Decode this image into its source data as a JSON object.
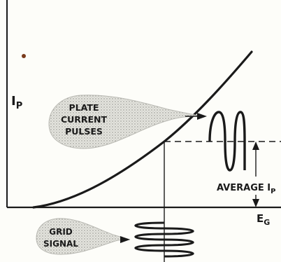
{
  "labels": {
    "y_axis": "I",
    "y_axis_sub": "P",
    "x_axis": "E",
    "x_axis_sub": "G",
    "plate_line1": "PLATE",
    "plate_line2": "CURRENT",
    "plate_line3": "PULSES",
    "grid_line1": "GRID",
    "grid_line2": "SIGNAL",
    "average": "AVERAGE I",
    "average_sub": "P"
  },
  "colors": {
    "ink": "#1a1a1a",
    "balloon_fill": "#d8d8d2",
    "dot": "#7a3b1c",
    "background": "#fdfdf9"
  },
  "icons": {
    "arrowhead": "triangle-arrowhead"
  }
}
